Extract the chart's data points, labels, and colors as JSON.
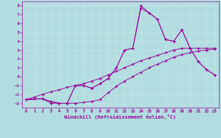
{
  "xlabel": "Windchill (Refroidissement éolien,°C)",
  "xlim": [
    -0.5,
    23.5
  ],
  "ylim": [
    -3.5,
    8.5
  ],
  "xticks": [
    0,
    1,
    2,
    3,
    4,
    5,
    6,
    7,
    8,
    9,
    10,
    11,
    12,
    13,
    14,
    15,
    16,
    17,
    18,
    19,
    20,
    21,
    22,
    23
  ],
  "yticks": [
    -3,
    -2,
    -1,
    0,
    1,
    2,
    3,
    4,
    5,
    6,
    7,
    8
  ],
  "bg_color": "#b2dde0",
  "line_color": "#990099",
  "grid_color": "#d0eaec",
  "line1_x": [
    0,
    1,
    2,
    3,
    4,
    5,
    6,
    7,
    8,
    9,
    10,
    11,
    12,
    13,
    14,
    15,
    16,
    17,
    18,
    19,
    20,
    21,
    22,
    23
  ],
  "line1_y": [
    -2.6,
    -2.5,
    -2.5,
    -3.0,
    -3.0,
    -3.0,
    -3.0,
    -2.9,
    -2.8,
    -2.6,
    -1.8,
    -1.1,
    -0.5,
    0.0,
    0.5,
    1.0,
    1.4,
    1.8,
    2.2,
    2.5,
    2.7,
    2.9,
    3.0,
    3.1
  ],
  "line2_x": [
    0,
    1,
    2,
    3,
    4,
    5,
    6,
    7,
    8,
    9,
    10,
    11,
    12,
    13,
    14,
    15,
    16,
    17,
    18,
    19,
    20,
    21,
    22,
    23
  ],
  "line2_y": [
    -2.6,
    -2.3,
    -2.0,
    -1.7,
    -1.5,
    -1.2,
    -1.0,
    -0.8,
    -0.5,
    -0.2,
    0.2,
    0.6,
    1.0,
    1.4,
    1.8,
    2.1,
    2.4,
    2.7,
    3.0,
    3.2,
    3.2,
    3.2,
    3.2,
    3.2
  ],
  "line3_x": [
    0,
    2,
    3,
    4,
    5,
    6,
    7,
    8,
    9,
    10,
    11,
    12,
    13,
    14,
    15,
    16,
    17,
    18,
    19,
    20,
    21,
    22,
    23
  ],
  "line3_y": [
    -2.6,
    -2.5,
    -2.8,
    -3.0,
    -3.0,
    -1.0,
    -1.0,
    -1.3,
    -0.8,
    -0.2,
    1.0,
    3.0,
    3.2,
    7.7,
    7.2,
    6.5,
    4.2,
    4.0,
    5.3,
    3.2,
    1.7,
    0.8,
    0.2
  ],
  "line4_x": [
    0,
    2,
    3,
    4,
    5,
    6,
    7,
    8,
    9,
    10,
    11,
    12,
    13,
    14,
    15,
    16,
    17,
    18,
    19,
    20,
    21,
    22,
    23
  ],
  "line4_y": [
    -2.6,
    -2.5,
    -2.8,
    -3.0,
    -3.0,
    -1.0,
    -1.0,
    -1.3,
    -0.8,
    -0.2,
    1.0,
    3.0,
    3.2,
    8.0,
    7.2,
    6.5,
    4.2,
    4.0,
    5.3,
    3.2,
    1.7,
    0.8,
    0.2
  ]
}
